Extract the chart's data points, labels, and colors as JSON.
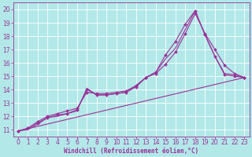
{
  "background_color": "#b2e8e8",
  "grid_color": "#ffffff",
  "line_color": "#993399",
  "xlabel": "Windchill (Refroidissement éolien,°C)",
  "xlabel_fontsize": 5.5,
  "tick_fontsize": 5.5,
  "xlim": [
    -0.5,
    23.5
  ],
  "ylim": [
    10.5,
    20.5
  ],
  "yticks": [
    11,
    12,
    13,
    14,
    15,
    16,
    17,
    18,
    19,
    20
  ],
  "xticks": [
    0,
    1,
    2,
    3,
    4,
    5,
    6,
    7,
    8,
    9,
    10,
    11,
    12,
    13,
    14,
    15,
    16,
    17,
    18,
    19,
    20,
    21,
    22,
    23
  ],
  "series": [
    {
      "x": [
        0,
        1,
        2,
        3,
        4,
        5,
        6,
        7,
        8,
        9,
        10,
        11,
        12,
        13,
        14,
        15,
        16,
        17,
        18,
        19,
        20,
        21,
        22,
        23
      ],
      "y": [
        10.9,
        11.1,
        11.5,
        11.9,
        12.1,
        12.2,
        12.5,
        14.0,
        13.6,
        13.6,
        13.7,
        13.8,
        14.2,
        14.9,
        15.3,
        16.6,
        17.6,
        18.9,
        19.9,
        18.1,
        16.5,
        15.1,
        15.0,
        14.9
      ],
      "marker": "D",
      "markersize": 2.0,
      "linewidth": 0.8
    },
    {
      "x": [
        0,
        1,
        2,
        3,
        4,
        5,
        6,
        7,
        8,
        9,
        10,
        11,
        12,
        13,
        14,
        15,
        16,
        17,
        18,
        19,
        20,
        21,
        22,
        23
      ],
      "y": [
        10.9,
        11.1,
        11.6,
        12.0,
        12.2,
        12.4,
        12.6,
        13.8,
        13.7,
        13.7,
        13.8,
        13.9,
        14.3,
        14.9,
        15.2,
        15.9,
        16.8,
        18.2,
        19.7,
        18.2,
        17.0,
        15.8,
        15.2,
        14.9
      ],
      "marker": "D",
      "markersize": 2.0,
      "linewidth": 0.8
    },
    {
      "x": [
        0,
        1,
        2,
        3,
        4,
        5,
        6,
        7,
        8,
        9,
        10,
        11,
        12,
        13,
        14,
        15,
        16,
        17,
        18,
        19,
        20,
        21,
        22,
        23
      ],
      "y": [
        10.9,
        11.0,
        11.4,
        11.9,
        12.0,
        12.2,
        12.4,
        14.1,
        13.6,
        13.6,
        13.7,
        13.8,
        14.3,
        14.9,
        15.3,
        16.3,
        17.1,
        18.5,
        19.9,
        18.1,
        16.5,
        15.2,
        15.1,
        14.9
      ],
      "marker": null,
      "markersize": 0,
      "linewidth": 0.8
    },
    {
      "x": [
        0,
        23
      ],
      "y": [
        10.9,
        14.9
      ],
      "marker": null,
      "markersize": 0,
      "linewidth": 0.8
    }
  ]
}
